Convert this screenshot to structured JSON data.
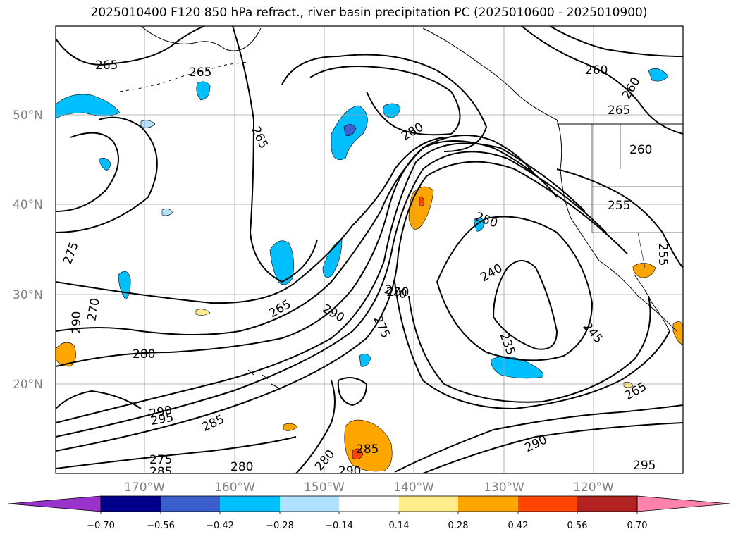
{
  "title": "2025010400 F120 850 hPa refract., river basin precipitation PC (2025010600 - 2025010900)",
  "colors": {
    "frame": "#000000",
    "grid": "#a0a0a0",
    "contour": "#000000",
    "axis_label": "#808080"
  },
  "map": {
    "lat_labels": [
      "50°N",
      "40°N",
      "30°N",
      "20°N"
    ],
    "lon_labels": [
      "170°W",
      "160°W",
      "150°W",
      "140°W",
      "130°W",
      "120°W"
    ],
    "contour_labels": [
      "265",
      "265",
      "265",
      "260",
      "260",
      "265",
      "260",
      "280",
      "255",
      "255",
      "250",
      "240",
      "270",
      "275",
      "290",
      "265",
      "275",
      "270",
      "290",
      "280",
      "235",
      "245",
      "265",
      "290",
      "295",
      "285",
      "275",
      "285",
      "285",
      "280",
      "280",
      "290",
      "290",
      "295",
      "290"
    ],
    "shading_colors": {
      "neg_070": "#9933cc",
      "neg_056": "#00008b",
      "neg_042": "#3a5fcd",
      "neg_028": "#00bfff",
      "neg_014": "#b0e2ff",
      "pos_014": "#ffec8b",
      "pos_028": "#ffa500",
      "pos_042": "#ff4500",
      "pos_056": "#b22222",
      "pos_070": "#ff82ab"
    }
  },
  "colorbar": {
    "ticks": [
      "−0.70",
      "−0.56",
      "−0.42",
      "−0.28",
      "−0.14",
      "0.14",
      "0.28",
      "0.42",
      "0.56",
      "0.70"
    ],
    "colors": [
      "#9933cc",
      "#00008b",
      "#3a5fcd",
      "#00bfff",
      "#b0e2ff",
      "#ffffff",
      "#ffec8b",
      "#ffa500",
      "#ff4500",
      "#b22222",
      "#ff82ab"
    ]
  }
}
